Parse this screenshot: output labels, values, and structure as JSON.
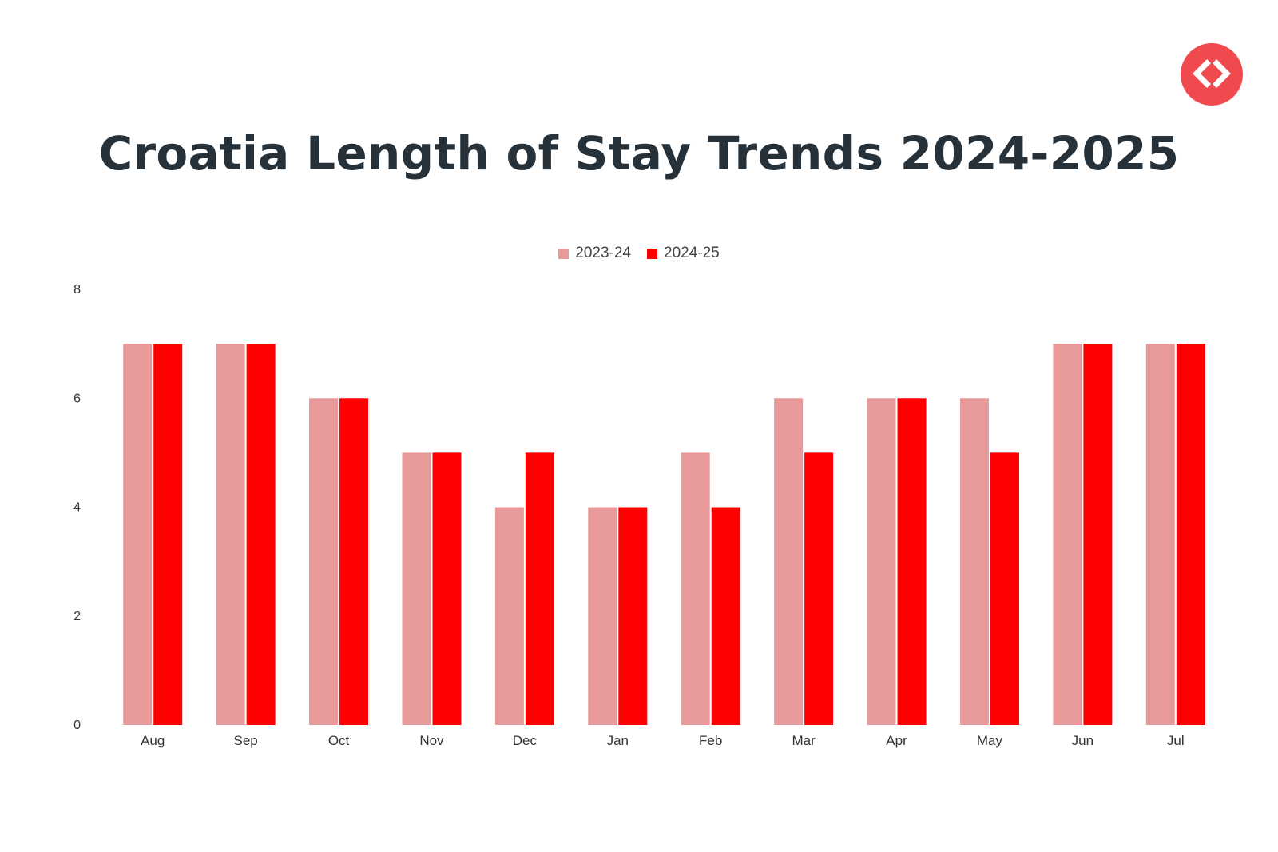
{
  "brand": {
    "accent": "#f04a4f",
    "logo_icon": "code-brackets-icon"
  },
  "chart_data": {
    "type": "bar",
    "title": "Croatia Length of Stay Trends 2024-2025",
    "xlabel": "",
    "ylabel": "",
    "ylim": [
      0,
      8
    ],
    "yticks": [
      0,
      2,
      4,
      6,
      8
    ],
    "grid": false,
    "legend_position": "top-center",
    "categories": [
      "Aug",
      "Sep",
      "Oct",
      "Nov",
      "Dec",
      "Jan",
      "Feb",
      "Mar",
      "Apr",
      "May",
      "Jun",
      "Jul"
    ],
    "series": [
      {
        "name": "2023-24",
        "color": "#e89a9a",
        "values": [
          7,
          7,
          6,
          5,
          4,
          4,
          5,
          6,
          6,
          6,
          7,
          7
        ]
      },
      {
        "name": "2024-25",
        "color": "#ff0000",
        "values": [
          7,
          7,
          6,
          5,
          5,
          4,
          4,
          5,
          6,
          5,
          7,
          7
        ]
      }
    ]
  }
}
